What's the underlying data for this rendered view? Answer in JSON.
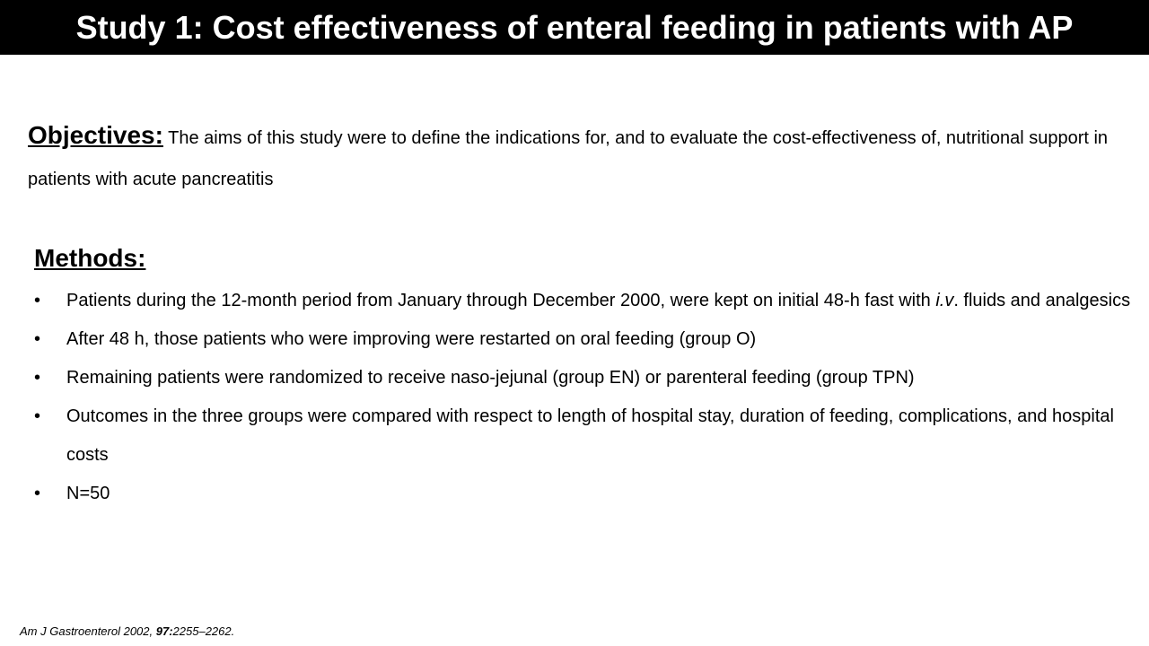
{
  "title": "Study 1: Cost effectiveness of enteral feeding in patients with AP",
  "objectives": {
    "heading": "Objectives:",
    "text": " The aims of this study were to define the indications for, and to evaluate the cost-effectiveness of, nutritional support in patients with acute pancreatitis"
  },
  "methods": {
    "heading": "Methods:",
    "bullet_symbol": "•",
    "bullet1_a": "Patients during the 12-month period from January through December 2000, were kept on initial 48-h fast with ",
    "bullet1_iv": "i.v",
    "bullet1_b": ". fluids and analgesics",
    "bullet2": "After 48 h, those patients who were improving were restarted on oral feeding (group O)",
    "bullet3": "Remaining patients were randomized to receive naso-jejunal (group EN) or parenteral feeding (group TPN)",
    "bullet4": "Outcomes in the three groups were compared with respect to length of hospital stay, duration of feeding, complications, and hospital costs",
    "bullet5": "N=50"
  },
  "footnote": {
    "journal": "Am J Gastroenterol 2002, ",
    "volume": "97:",
    "pages": "2255–2262."
  }
}
